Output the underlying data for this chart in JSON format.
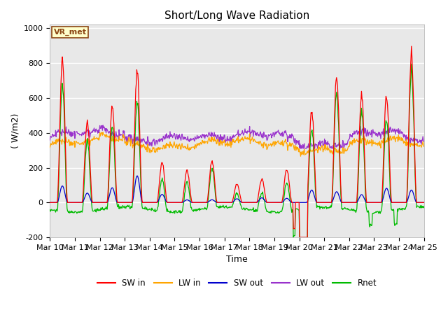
{
  "title": "Short/Long Wave Radiation",
  "ylabel": "( W/m2)",
  "xlabel": "Time",
  "ylim": [
    -200,
    1020
  ],
  "yticks": [
    -200,
    0,
    200,
    400,
    600,
    800,
    1000
  ],
  "xtick_labels": [
    "Mar 10",
    "Mar 11",
    "Mar 12",
    "Mar 13",
    "Mar 14",
    "Mar 15",
    "Mar 16",
    "Mar 17",
    "Mar 18",
    "Mar 19",
    "Mar 20",
    "Mar 21",
    "Mar 22",
    "Mar 23",
    "Mar 24",
    "Mar 25"
  ],
  "annotation_text": "VR_met",
  "annotation_color": "#8B4513",
  "annotation_bg": "#FFFFCC",
  "bg_color": "#E8E8E8",
  "line_colors": {
    "SW_in": "#FF0000",
    "LW_in": "#FFA500",
    "SW_out": "#0000CD",
    "LW_out": "#9932CC",
    "Rnet": "#00BB00"
  },
  "legend_labels": [
    "SW in",
    "LW in",
    "SW out",
    "LW out",
    "Rnet"
  ],
  "title_fontsize": 11,
  "axis_fontsize": 9,
  "tick_fontsize": 8,
  "n_days": 15
}
